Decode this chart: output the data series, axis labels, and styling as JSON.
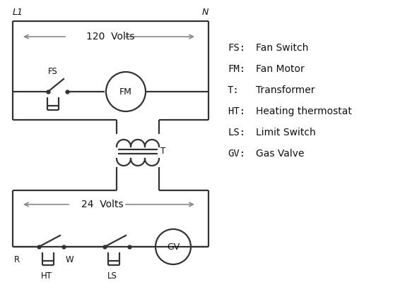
{
  "background_color": "#ffffff",
  "line_color": "#333333",
  "arrow_color": "#888888",
  "text_color": "#111111",
  "legend_items": [
    [
      "FS:",
      "Fan Switch"
    ],
    [
      "FM:",
      "Fan Motor"
    ],
    [
      "T:",
      "Transformer"
    ],
    [
      "HT:",
      "Heating thermostat"
    ],
    [
      "LS:",
      "Limit Switch"
    ],
    [
      "GV:",
      "Gas Valve"
    ]
  ],
  "fig_width": 5.9,
  "fig_height": 4.0,
  "dpi": 100
}
